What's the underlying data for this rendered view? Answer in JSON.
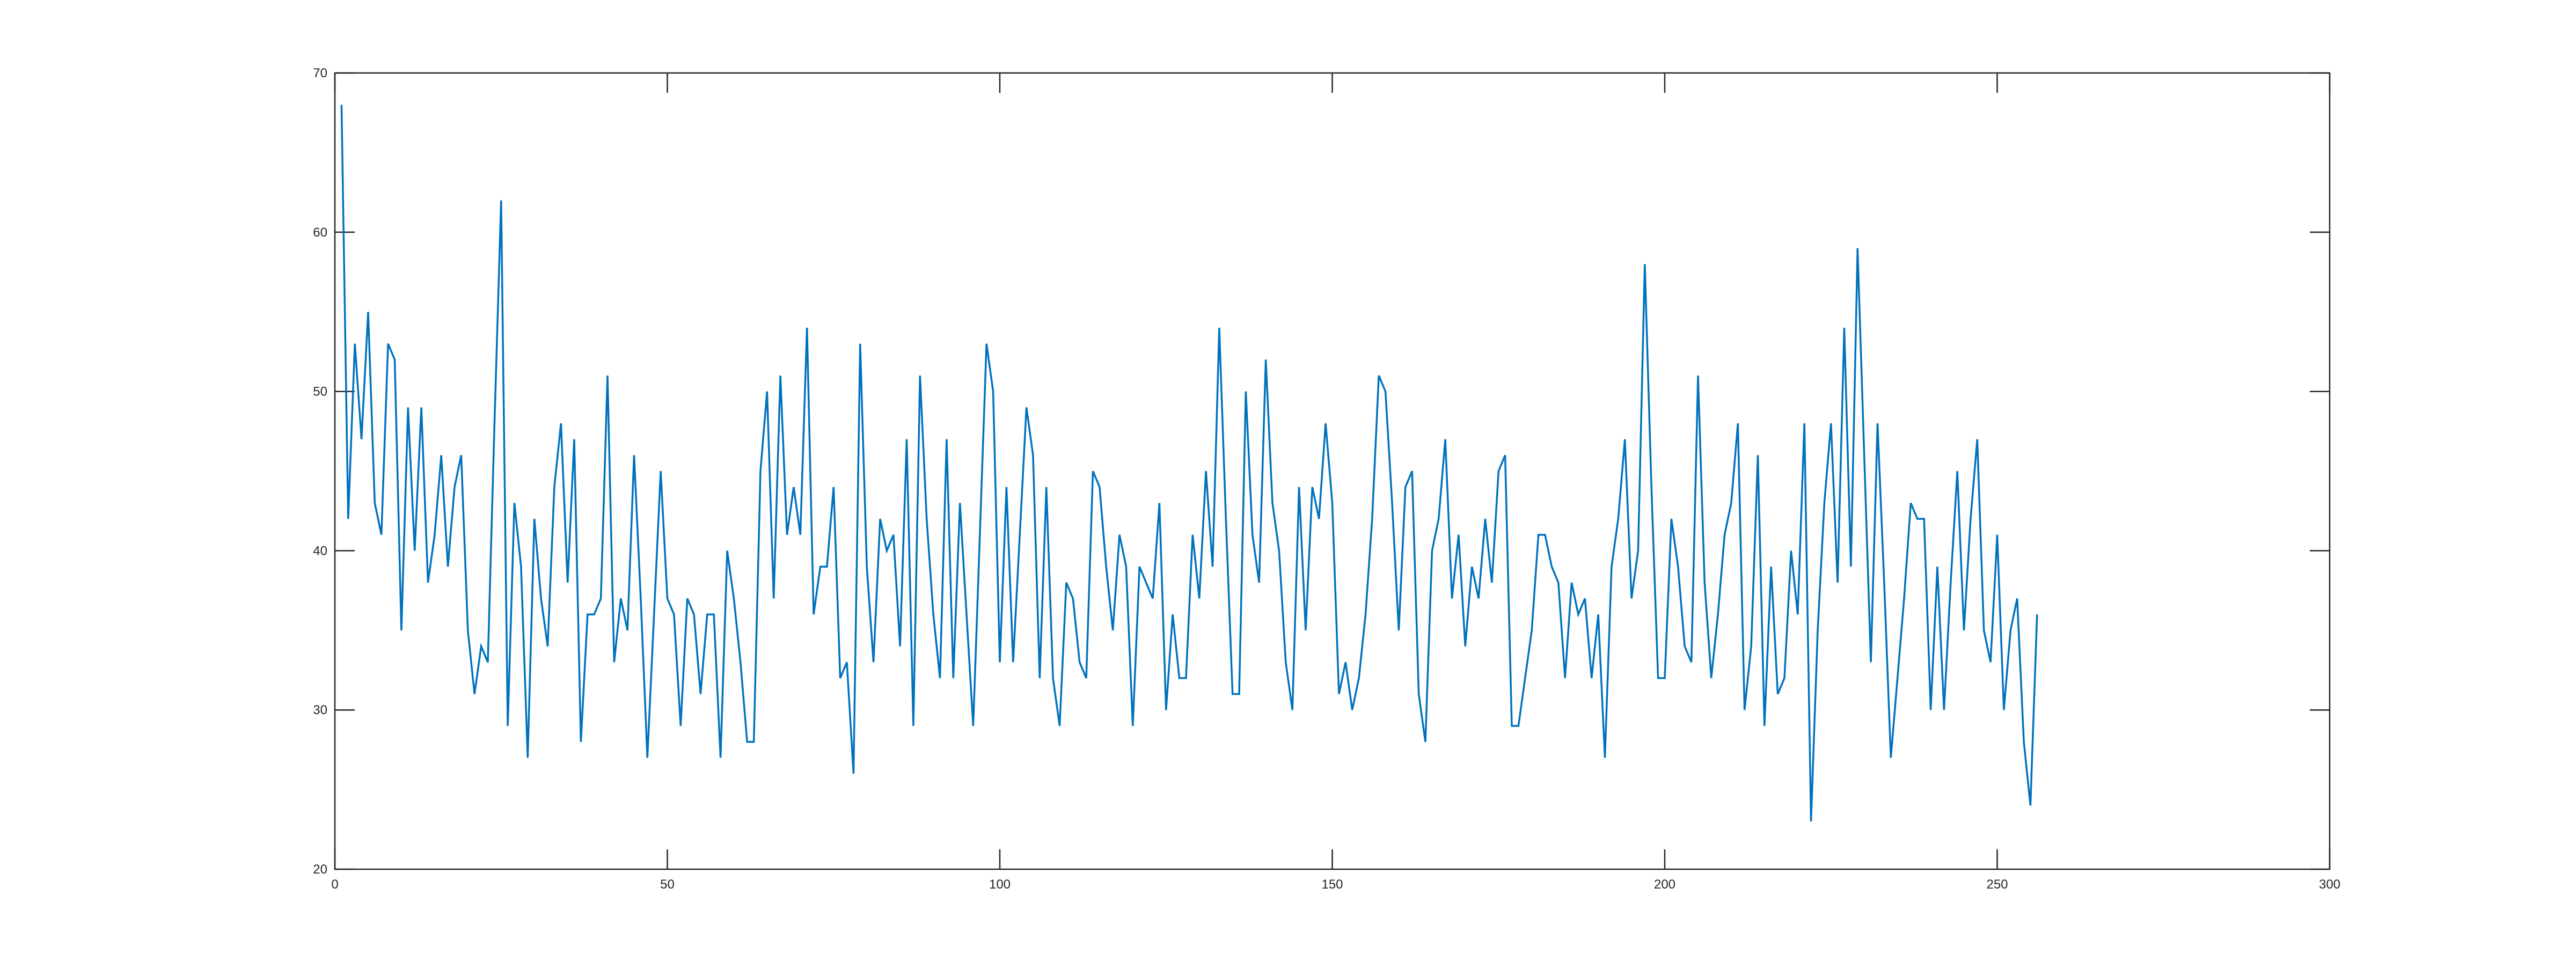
{
  "chart_data": {
    "type": "line",
    "title": "",
    "xlabel": "",
    "ylabel": "",
    "xlim": [
      0,
      300
    ],
    "ylim": [
      20,
      70
    ],
    "xticks": [
      "0",
      "50",
      "100",
      "150",
      "200",
      "250",
      "300"
    ],
    "yticks": [
      "20",
      "30",
      "40",
      "50",
      "60",
      "70"
    ],
    "grid": false,
    "legend": "none",
    "line_color": "#0072BD",
    "axis_color": "#262626",
    "x_start": 1,
    "series": [
      {
        "values": [
          68,
          42,
          53,
          47,
          55,
          43,
          41,
          53,
          52,
          35,
          49,
          40,
          49,
          38,
          41,
          46,
          39,
          44,
          46,
          35,
          31,
          34,
          33,
          48,
          62,
          29,
          43,
          39,
          27,
          42,
          37,
          34,
          44,
          48,
          38,
          47,
          28,
          36,
          36,
          37,
          51,
          33,
          37,
          35,
          46,
          37,
          27,
          36,
          45,
          37,
          36,
          29,
          37,
          36,
          31,
          36,
          36,
          27,
          40,
          37,
          33,
          28,
          28,
          45,
          50,
          37,
          51,
          41,
          44,
          41,
          54,
          36,
          39,
          39,
          44,
          32,
          33,
          26,
          53,
          39,
          33,
          42,
          40,
          41,
          34,
          47,
          29,
          51,
          42,
          36,
          32,
          47,
          32,
          43,
          36,
          29,
          41,
          53,
          50,
          33,
          44,
          33,
          41,
          49,
          46,
          32,
          44,
          32,
          29,
          38,
          37,
          33,
          32,
          45,
          44,
          39,
          35,
          41,
          39,
          29,
          39,
          38,
          37,
          43,
          30,
          36,
          32,
          32,
          41,
          37,
          45,
          39,
          54,
          42,
          31,
          31,
          50,
          41,
          38,
          52,
          43,
          40,
          33,
          30,
          44,
          35,
          44,
          42,
          48,
          43,
          31,
          33,
          30,
          32,
          36,
          42,
          51,
          50,
          43,
          35,
          44,
          45,
          31,
          28,
          40,
          42,
          47,
          37,
          41,
          34,
          39,
          37,
          42,
          38,
          45,
          46,
          29,
          29,
          32,
          35,
          41,
          41,
          39,
          38,
          32,
          38,
          36,
          37,
          32,
          36,
          27,
          39,
          42,
          47,
          37,
          40,
          58,
          44,
          32,
          32,
          42,
          39,
          34,
          33,
          51,
          38,
          32,
          36,
          41,
          43,
          48,
          30,
          34,
          46,
          29,
          39,
          31,
          32,
          40,
          36,
          48,
          23,
          35,
          43,
          48,
          38,
          54,
          39,
          59,
          46,
          33,
          48,
          38,
          27,
          32,
          37,
          43,
          42,
          42,
          30,
          39,
          30,
          38,
          45,
          35,
          42,
          47,
          35,
          33,
          41,
          30,
          35,
          37,
          28,
          24,
          36
        ]
      }
    ]
  }
}
